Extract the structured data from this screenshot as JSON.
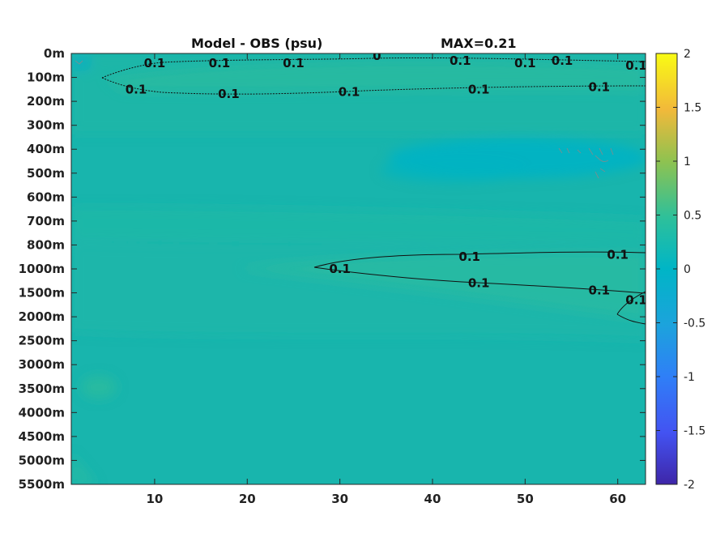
{
  "chart_data": {
    "type": "heatmap",
    "title": "Model - OBS (psu)",
    "max_label": "MAX=0.21",
    "xlabel": "",
    "ylabel": "",
    "xlim": [
      1,
      63
    ],
    "x_ticks": [
      "10",
      "20",
      "30",
      "40",
      "50",
      "60"
    ],
    "x_tick_values": [
      10,
      20,
      30,
      40,
      50,
      60
    ],
    "y_ticks": [
      "0m",
      "100m",
      "200m",
      "300m",
      "400m",
      "500m",
      "600m",
      "700m",
      "800m",
      "1000m",
      "1500m",
      "2000m",
      "2500m",
      "3000m",
      "3500m",
      "4000m",
      "4500m",
      "5000m",
      "5500m"
    ],
    "colorbar": {
      "colormap": "parula",
      "clim": [
        -2,
        2
      ],
      "ticks": [
        "2",
        "1.5",
        "1",
        "0.5",
        "0",
        "-0.5",
        "-1",
        "-1.5",
        "-2"
      ],
      "tick_values": [
        2,
        1.5,
        1,
        0.5,
        0,
        -0.5,
        -1,
        -1.5,
        -2
      ]
    },
    "background_value": 0.05,
    "contour_level": 0.1,
    "contour_labels": [
      {
        "text": "0.1",
        "x": 10,
        "depth_index": 0.4
      },
      {
        "text": "0.1",
        "x": 17,
        "depth_index": 0.4
      },
      {
        "text": "0.1",
        "x": 25,
        "depth_index": 0.4
      },
      {
        "text": "0",
        "x": 34,
        "depth_index": 0.1
      },
      {
        "text": "0.1",
        "x": 43,
        "depth_index": 0.3
      },
      {
        "text": "0.1",
        "x": 50,
        "depth_index": 0.4
      },
      {
        "text": "0.1",
        "x": 54,
        "depth_index": 0.3
      },
      {
        "text": "0.1",
        "x": 62,
        "depth_index": 0.5
      },
      {
        "text": "0.1",
        "x": 8,
        "depth_index": 1.5
      },
      {
        "text": "0.1",
        "x": 18,
        "depth_index": 1.7
      },
      {
        "text": "0.1",
        "x": 31,
        "depth_index": 1.6
      },
      {
        "text": "0.1",
        "x": 45,
        "depth_index": 1.5
      },
      {
        "text": "0.1",
        "x": 58,
        "depth_index": 1.4
      },
      {
        "text": "0.1",
        "x": 30,
        "depth_index": 9.0
      },
      {
        "text": "0.1",
        "x": 44,
        "depth_index": 8.5
      },
      {
        "text": "0.1",
        "x": 60,
        "depth_index": 8.4
      },
      {
        "text": "0.1",
        "x": 45,
        "depth_index": 9.6
      },
      {
        "text": "0.1",
        "x": 58,
        "depth_index": 9.9
      },
      {
        "text": "0.1",
        "x": 62,
        "depth_index": 10.3
      }
    ]
  }
}
